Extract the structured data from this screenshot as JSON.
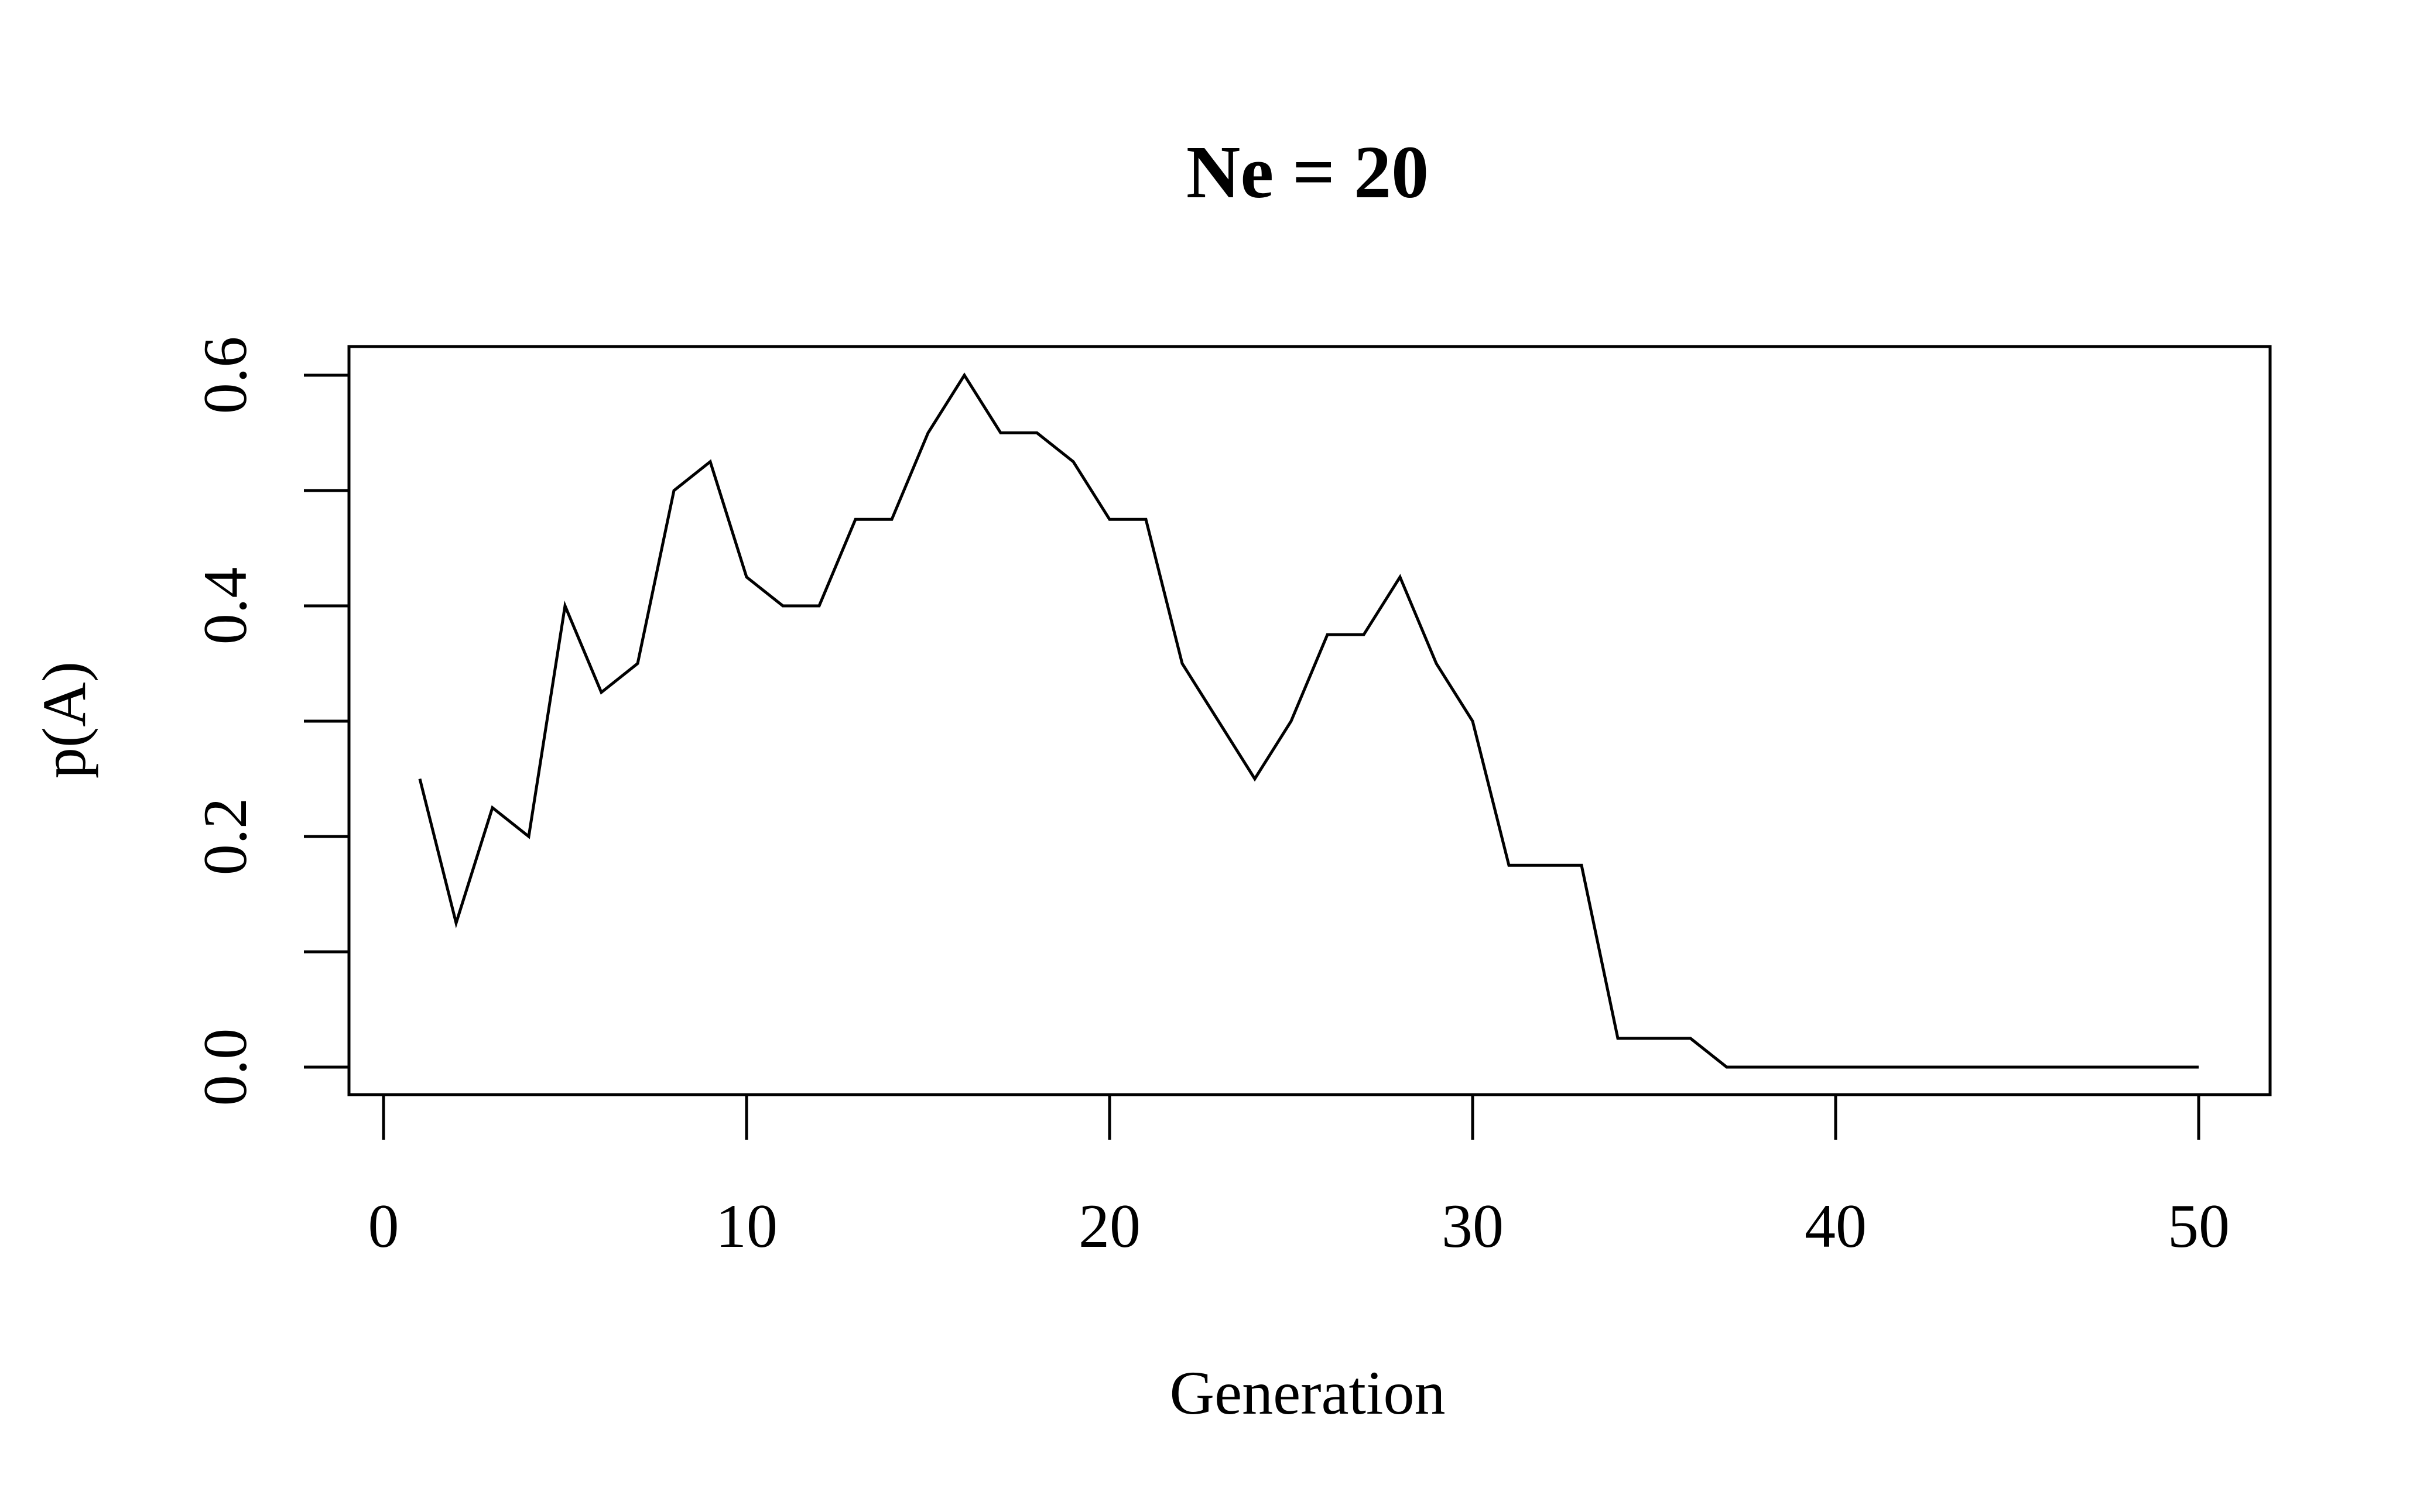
{
  "chart_data": {
    "type": "line",
    "title": "Ne = 20",
    "xlabel": "Generation",
    "ylabel": "p(A)",
    "xlim": [
      0,
      50
    ],
    "ylim": [
      0,
      0.6
    ],
    "x_ticks": [
      0,
      10,
      20,
      30,
      40,
      50
    ],
    "x_tick_labels": [
      "0",
      "10",
      "20",
      "30",
      "40",
      "50"
    ],
    "y_ticks": [
      0,
      0.1,
      0.2,
      0.3,
      0.4,
      0.5,
      0.6
    ],
    "y_tick_labels": [
      "0.0",
      "0.2",
      "0.4",
      "0.6"
    ],
    "y_labeled_ticks": [
      0,
      0.2,
      0.4,
      0.6
    ],
    "grid": false,
    "series": [
      {
        "x": [
          1,
          2,
          3,
          4,
          5,
          6,
          7,
          8,
          9,
          10,
          11,
          12,
          13,
          14,
          15,
          16,
          17,
          18,
          19,
          20,
          21,
          22,
          23,
          24,
          25,
          26,
          27,
          28,
          29,
          30,
          31,
          32,
          33,
          34,
          35,
          36,
          37,
          38,
          39,
          40,
          41,
          42,
          43,
          44,
          45,
          46,
          47,
          48,
          49,
          50
        ],
        "values": [
          0.25,
          0.125,
          0.225,
          0.2,
          0.4,
          0.325,
          0.35,
          0.5,
          0.525,
          0.425,
          0.4,
          0.4,
          0.475,
          0.475,
          0.55,
          0.6,
          0.55,
          0.55,
          0.525,
          0.475,
          0.475,
          0.35,
          0.3,
          0.25,
          0.3,
          0.375,
          0.375,
          0.425,
          0.35,
          0.3,
          0.175,
          0.175,
          0.175,
          0.025,
          0.025,
          0.025,
          0,
          0,
          0,
          0,
          0,
          0,
          0,
          0,
          0,
          0,
          0,
          0,
          0,
          0
        ],
        "color": "#000000"
      }
    ]
  }
}
